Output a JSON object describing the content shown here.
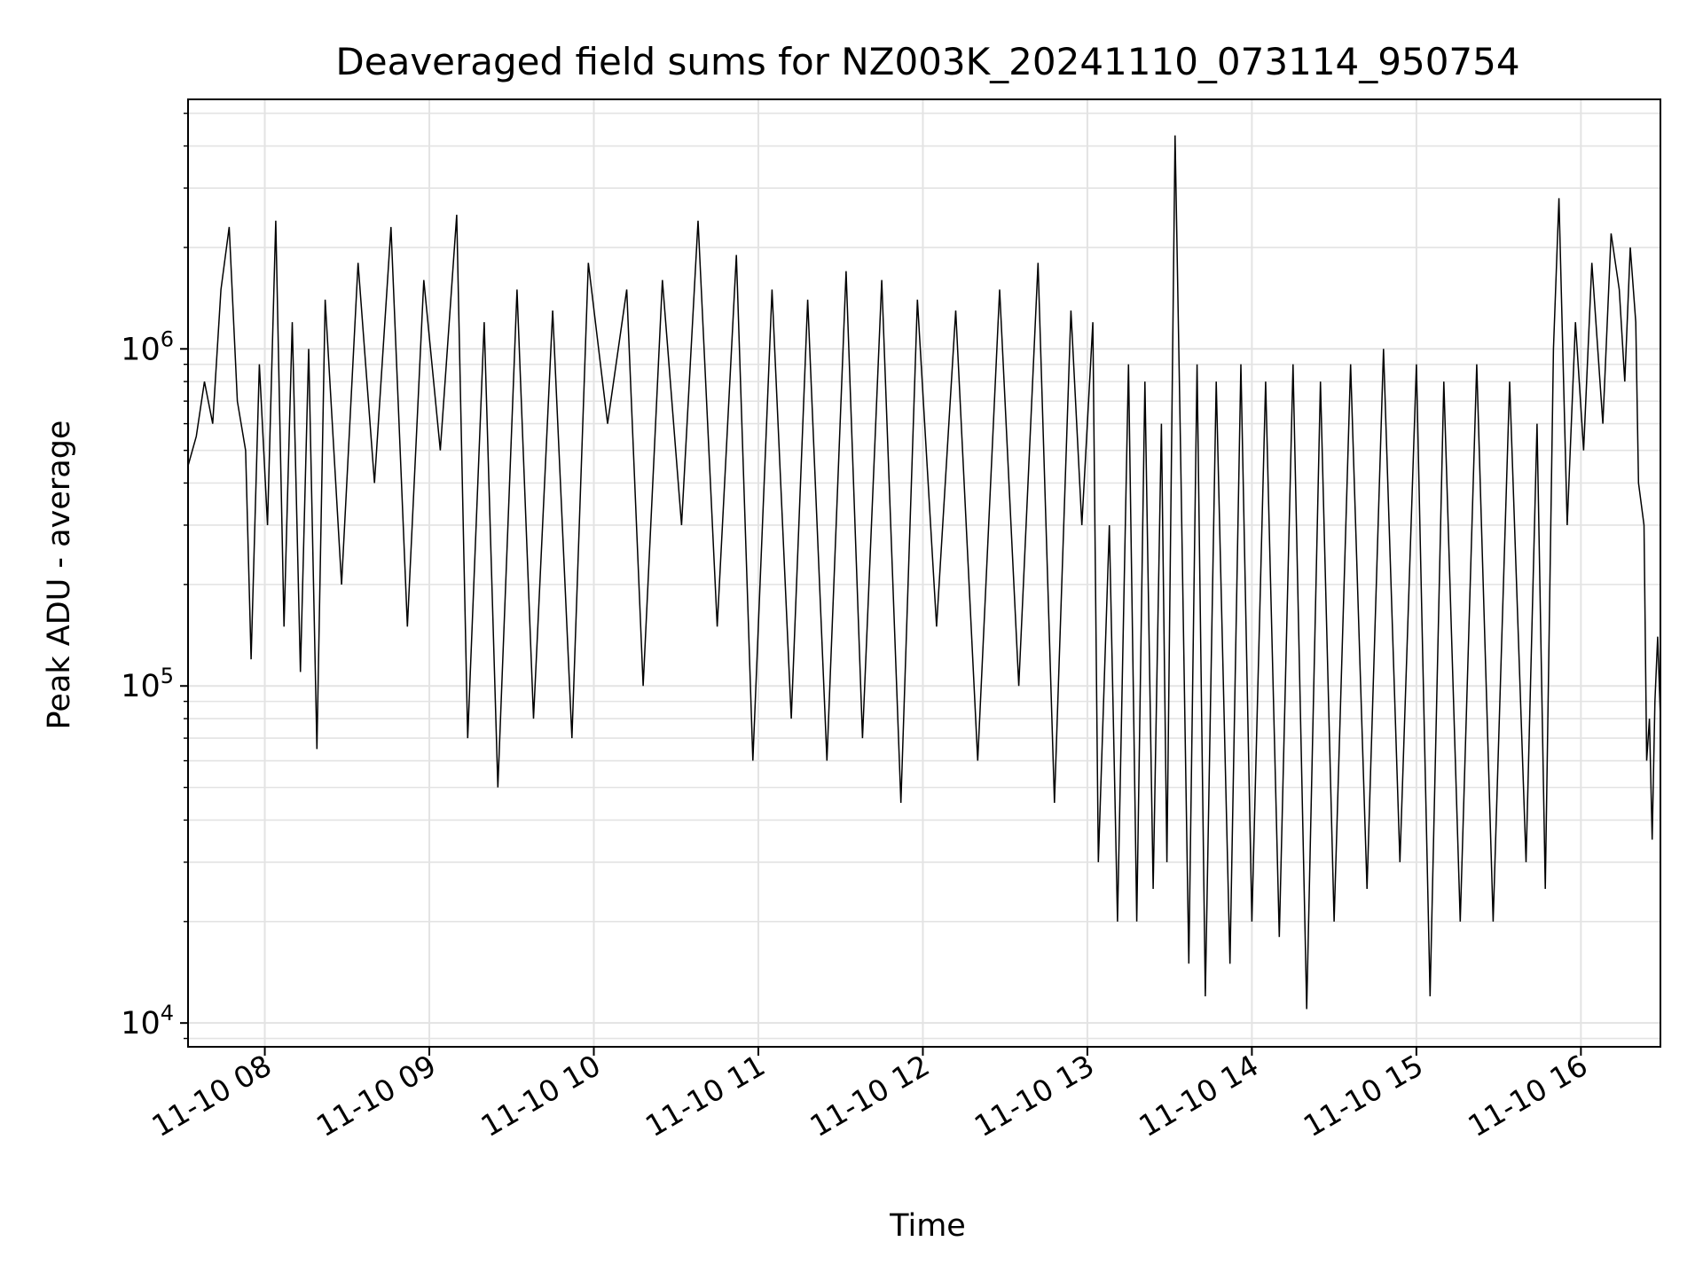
{
  "chart_data": {
    "type": "line",
    "title": "Deaveraged field sums for NZ003K_20241110_073114_950754",
    "xlabel": "Time",
    "ylabel": "Peak ADU - average",
    "y_scale": "log",
    "ylim": [
      8500,
      5500000
    ],
    "xlim": [
      "2024-11-10 07:32",
      "2024-11-10 16:29"
    ],
    "grid": true,
    "line_color": "#000000",
    "x_tick_labels": [
      "11-10 08",
      "11-10 09",
      "11-10 10",
      "11-10 11",
      "11-10 12",
      "11-10 13",
      "11-10 14",
      "11-10 15",
      "11-10 16"
    ],
    "x_tick_times": [
      "2024-11-10 08:00",
      "2024-11-10 09:00",
      "2024-11-10 10:00",
      "2024-11-10 11:00",
      "2024-11-10 12:00",
      "2024-11-10 13:00",
      "2024-11-10 14:00",
      "2024-11-10 15:00",
      "2024-11-10 16:00"
    ],
    "y_ticks": [
      {
        "value": 10000,
        "base": "10",
        "exp": "4"
      },
      {
        "value": 100000,
        "base": "10",
        "exp": "5"
      },
      {
        "value": 1000000,
        "base": "10",
        "exp": "6"
      }
    ],
    "series": [
      {
        "points": [
          [
            "2024-11-10 07:32",
            450000
          ],
          [
            "2024-11-10 07:35",
            550000
          ],
          [
            "2024-11-10 07:38",
            800000
          ],
          [
            "2024-11-10 07:41",
            600000
          ],
          [
            "2024-11-10 07:44",
            1500000
          ],
          [
            "2024-11-10 07:47",
            2300000
          ],
          [
            "2024-11-10 07:50",
            700000
          ],
          [
            "2024-11-10 07:53",
            500000
          ],
          [
            "2024-11-10 07:55",
            120000
          ],
          [
            "2024-11-10 07:58",
            900000
          ],
          [
            "2024-11-10 08:01",
            300000
          ],
          [
            "2024-11-10 08:04",
            2400000
          ],
          [
            "2024-11-10 08:07",
            150000
          ],
          [
            "2024-11-10 08:10",
            1200000
          ],
          [
            "2024-11-10 08:13",
            110000
          ],
          [
            "2024-11-10 08:16",
            1000000
          ],
          [
            "2024-11-10 08:19",
            65000
          ],
          [
            "2024-11-10 08:22",
            1400000
          ],
          [
            "2024-11-10 08:28",
            200000
          ],
          [
            "2024-11-10 08:34",
            1800000
          ],
          [
            "2024-11-10 08:40",
            400000
          ],
          [
            "2024-11-10 08:46",
            2300000
          ],
          [
            "2024-11-10 08:52",
            150000
          ],
          [
            "2024-11-10 08:58",
            1600000
          ],
          [
            "2024-11-10 09:04",
            500000
          ],
          [
            "2024-11-10 09:10",
            2500000
          ],
          [
            "2024-11-10 09:14",
            70000
          ],
          [
            "2024-11-10 09:20",
            1200000
          ],
          [
            "2024-11-10 09:25",
            50000
          ],
          [
            "2024-11-10 09:32",
            1500000
          ],
          [
            "2024-11-10 09:38",
            80000
          ],
          [
            "2024-11-10 09:45",
            1300000
          ],
          [
            "2024-11-10 09:52",
            70000
          ],
          [
            "2024-11-10 09:58",
            1800000
          ],
          [
            "2024-11-10 10:05",
            600000
          ],
          [
            "2024-11-10 10:12",
            1500000
          ],
          [
            "2024-11-10 10:18",
            100000
          ],
          [
            "2024-11-10 10:25",
            1600000
          ],
          [
            "2024-11-10 10:32",
            300000
          ],
          [
            "2024-11-10 10:38",
            2400000
          ],
          [
            "2024-11-10 10:45",
            150000
          ],
          [
            "2024-11-10 10:52",
            1900000
          ],
          [
            "2024-11-10 10:58",
            60000
          ],
          [
            "2024-11-10 11:05",
            1500000
          ],
          [
            "2024-11-10 11:12",
            80000
          ],
          [
            "2024-11-10 11:18",
            1400000
          ],
          [
            "2024-11-10 11:25",
            60000
          ],
          [
            "2024-11-10 11:32",
            1700000
          ],
          [
            "2024-11-10 11:38",
            70000
          ],
          [
            "2024-11-10 11:45",
            1600000
          ],
          [
            "2024-11-10 11:52",
            45000
          ],
          [
            "2024-11-10 11:58",
            1400000
          ],
          [
            "2024-11-10 12:05",
            150000
          ],
          [
            "2024-11-10 12:12",
            1300000
          ],
          [
            "2024-11-10 12:20",
            60000
          ],
          [
            "2024-11-10 12:28",
            1500000
          ],
          [
            "2024-11-10 12:35",
            100000
          ],
          [
            "2024-11-10 12:42",
            1800000
          ],
          [
            "2024-11-10 12:48",
            45000
          ],
          [
            "2024-11-10 12:54",
            1300000
          ],
          [
            "2024-11-10 12:58",
            300000
          ],
          [
            "2024-11-10 13:02",
            1200000
          ],
          [
            "2024-11-10 13:04",
            30000
          ],
          [
            "2024-11-10 13:08",
            300000
          ],
          [
            "2024-11-10 13:11",
            20000
          ],
          [
            "2024-11-10 13:15",
            900000
          ],
          [
            "2024-11-10 13:18",
            20000
          ],
          [
            "2024-11-10 13:21",
            800000
          ],
          [
            "2024-11-10 13:24",
            25000
          ],
          [
            "2024-11-10 13:27",
            600000
          ],
          [
            "2024-11-10 13:29",
            30000
          ],
          [
            "2024-11-10 13:32",
            4300000
          ],
          [
            "2024-11-10 13:34",
            500000
          ],
          [
            "2024-11-10 13:37",
            15000
          ],
          [
            "2024-11-10 13:40",
            900000
          ],
          [
            "2024-11-10 13:43",
            12000
          ],
          [
            "2024-11-10 13:47",
            800000
          ],
          [
            "2024-11-10 13:52",
            15000
          ],
          [
            "2024-11-10 13:56",
            900000
          ],
          [
            "2024-11-10 14:00",
            20000
          ],
          [
            "2024-11-10 14:05",
            800000
          ],
          [
            "2024-11-10 14:10",
            18000
          ],
          [
            "2024-11-10 14:15",
            900000
          ],
          [
            "2024-11-10 14:20",
            11000
          ],
          [
            "2024-11-10 14:25",
            800000
          ],
          [
            "2024-11-10 14:30",
            20000
          ],
          [
            "2024-11-10 14:36",
            900000
          ],
          [
            "2024-11-10 14:42",
            25000
          ],
          [
            "2024-11-10 14:48",
            1000000
          ],
          [
            "2024-11-10 14:54",
            30000
          ],
          [
            "2024-11-10 15:00",
            900000
          ],
          [
            "2024-11-10 15:05",
            12000
          ],
          [
            "2024-11-10 15:10",
            800000
          ],
          [
            "2024-11-10 15:16",
            20000
          ],
          [
            "2024-11-10 15:22",
            900000
          ],
          [
            "2024-11-10 15:28",
            20000
          ],
          [
            "2024-11-10 15:34",
            800000
          ],
          [
            "2024-11-10 15:40",
            30000
          ],
          [
            "2024-11-10 15:44",
            600000
          ],
          [
            "2024-11-10 15:47",
            25000
          ],
          [
            "2024-11-10 15:50",
            1000000
          ],
          [
            "2024-11-10 15:52",
            2800000
          ],
          [
            "2024-11-10 15:55",
            300000
          ],
          [
            "2024-11-10 15:58",
            1200000
          ],
          [
            "2024-11-10 16:01",
            500000
          ],
          [
            "2024-11-10 16:04",
            1800000
          ],
          [
            "2024-11-10 16:08",
            600000
          ],
          [
            "2024-11-10 16:11",
            2200000
          ],
          [
            "2024-11-10 16:14",
            1500000
          ],
          [
            "2024-11-10 16:16",
            800000
          ],
          [
            "2024-11-10 16:18",
            2000000
          ],
          [
            "2024-11-10 16:20",
            1200000
          ],
          [
            "2024-11-10 16:21",
            400000
          ],
          [
            "2024-11-10 16:23",
            300000
          ],
          [
            "2024-11-10 16:24",
            60000
          ],
          [
            "2024-11-10 16:25",
            80000
          ],
          [
            "2024-11-10 16:26",
            35000
          ],
          [
            "2024-11-10 16:27",
            90000
          ],
          [
            "2024-11-10 16:28",
            140000
          ],
          [
            "2024-11-10 16:29",
            80000
          ]
        ]
      }
    ]
  }
}
